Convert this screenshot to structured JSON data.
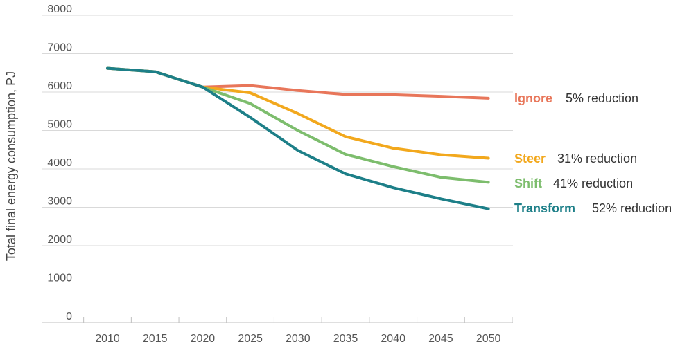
{
  "chart_data": {
    "type": "line",
    "ylabel": "Total final energy consumption, PJ",
    "xlabel": "",
    "ylim": [
      0,
      8000
    ],
    "yticks": [
      0,
      1000,
      2000,
      3000,
      4000,
      5000,
      6000,
      7000,
      8000
    ],
    "x": [
      2010,
      2015,
      2020,
      2025,
      2030,
      2035,
      2040,
      2045,
      2050
    ],
    "grid": "horizontal",
    "legend": "right",
    "series": [
      {
        "name": "Ignore",
        "note": "5% reduction",
        "color": "#e8765a",
        "values": [
          6620,
          6530,
          6130,
          6170,
          6040,
          5940,
          5930,
          5890,
          5840
        ]
      },
      {
        "name": "Steer",
        "note": "31% reduction",
        "color": "#f2a81d",
        "values": [
          6620,
          6530,
          6130,
          5980,
          5440,
          4840,
          4540,
          4370,
          4280
        ]
      },
      {
        "name": "Shift",
        "note": "41% reduction",
        "color": "#7dbd6d",
        "values": [
          6620,
          6530,
          6130,
          5700,
          5000,
          4380,
          4060,
          3780,
          3650
        ]
      },
      {
        "name": "Transform",
        "note": "52% reduction",
        "color": "#1d7f88",
        "values": [
          6620,
          6530,
          6130,
          5340,
          4480,
          3870,
          3510,
          3220,
          2960
        ]
      }
    ]
  }
}
